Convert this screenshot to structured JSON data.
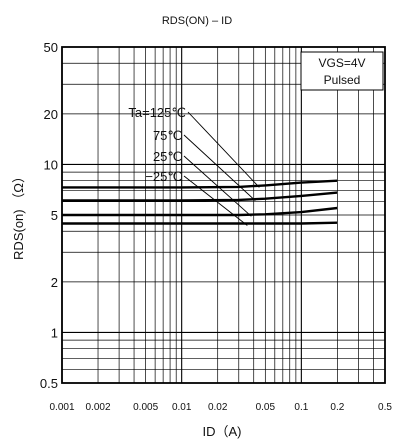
{
  "chart_data": {
    "type": "line",
    "title": "RDS(ON) – ID",
    "xlabel": "ID（A)",
    "ylabel": "RDS(on) （Ω）",
    "xscale": "log",
    "yscale": "log",
    "xlim": [
      0.001,
      0.5
    ],
    "ylim": [
      0.5,
      50
    ],
    "grid": true,
    "x_tick_labels": [
      "0.001",
      "0.002",
      "0.005",
      "0.01",
      "0.02",
      "0.05",
      "0.1",
      "0.2",
      "0.5"
    ],
    "x_ticks": [
      0.001,
      0.002,
      0.005,
      0.01,
      0.02,
      0.05,
      0.1,
      0.2,
      0.5
    ],
    "y_tick_labels": [
      "0.5",
      "1",
      "2",
      "5",
      "10",
      "20",
      "50"
    ],
    "y_ticks": [
      0.5,
      1,
      2,
      5,
      10,
      20,
      50
    ],
    "condition_box": [
      "VGS=4V",
      "Pulsed"
    ],
    "series": [
      {
        "name": "Ta=125℃",
        "x": [
          0.001,
          0.01,
          0.03,
          0.05,
          0.1,
          0.2
        ],
        "y": [
          7.3,
          7.3,
          7.35,
          7.5,
          7.8,
          8.0
        ]
      },
      {
        "name": "75℃",
        "x": [
          0.001,
          0.01,
          0.03,
          0.05,
          0.1,
          0.2
        ],
        "y": [
          6.1,
          6.1,
          6.15,
          6.25,
          6.5,
          6.8
        ]
      },
      {
        "name": "25℃",
        "x": [
          0.001,
          0.01,
          0.03,
          0.05,
          0.1,
          0.2
        ],
        "y": [
          5.0,
          5.0,
          5.0,
          5.05,
          5.2,
          5.5
        ]
      },
      {
        "name": "−25℃",
        "x": [
          0.001,
          0.01,
          0.03,
          0.05,
          0.1,
          0.2
        ],
        "y": [
          4.45,
          4.45,
          4.45,
          4.45,
          4.45,
          4.5
        ]
      }
    ]
  }
}
